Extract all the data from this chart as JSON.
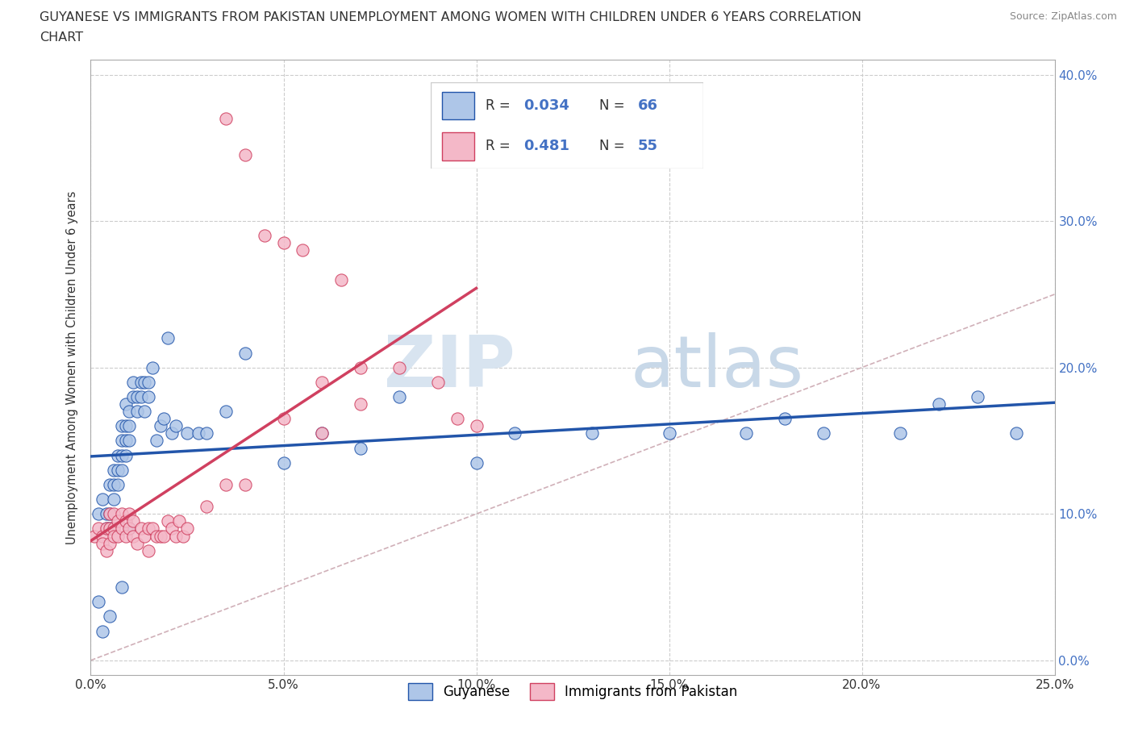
{
  "title_line1": "GUYANESE VS IMMIGRANTS FROM PAKISTAN UNEMPLOYMENT AMONG WOMEN WITH CHILDREN UNDER 6 YEARS CORRELATION",
  "title_line2": "CHART",
  "source": "Source: ZipAtlas.com",
  "xlim": [
    0,
    0.25
  ],
  "ylim": [
    -0.02,
    0.42
  ],
  "watermark_zip": "ZIP",
  "watermark_atlas": "atlas",
  "legend_r1": "0.034",
  "legend_n1": "66",
  "legend_r2": "0.481",
  "legend_n2": "55",
  "ylabel": "Unemployment Among Women with Children Under 6 years",
  "series1_color": "#aec6e8",
  "series2_color": "#f4b8c8",
  "series1_label": "Guyanese",
  "series2_label": "Immigrants from Pakistan",
  "series1_line_color": "#2255aa",
  "series2_line_color": "#d04060",
  "diag_color": "#d0b0b8",
  "background_color": "#ffffff",
  "s1_x": [
    0.002,
    0.003,
    0.004,
    0.004,
    0.005,
    0.005,
    0.005,
    0.006,
    0.006,
    0.006,
    0.007,
    0.007,
    0.007,
    0.008,
    0.008,
    0.008,
    0.008,
    0.009,
    0.009,
    0.009,
    0.009,
    0.01,
    0.01,
    0.01,
    0.011,
    0.011,
    0.012,
    0.012,
    0.013,
    0.013,
    0.014,
    0.014,
    0.015,
    0.015,
    0.016,
    0.017,
    0.018,
    0.019,
    0.02,
    0.021,
    0.022,
    0.025,
    0.028,
    0.03,
    0.035,
    0.04,
    0.05,
    0.06,
    0.07,
    0.08,
    0.1,
    0.11,
    0.13,
    0.15,
    0.17,
    0.18,
    0.19,
    0.21,
    0.22,
    0.23,
    0.24,
    0.002,
    0.003,
    0.005,
    0.008,
    0.01
  ],
  "s1_y": [
    0.1,
    0.11,
    0.1,
    0.09,
    0.12,
    0.1,
    0.09,
    0.13,
    0.12,
    0.11,
    0.14,
    0.13,
    0.12,
    0.16,
    0.15,
    0.14,
    0.13,
    0.175,
    0.16,
    0.15,
    0.14,
    0.17,
    0.16,
    0.15,
    0.19,
    0.18,
    0.18,
    0.17,
    0.19,
    0.18,
    0.19,
    0.17,
    0.19,
    0.18,
    0.2,
    0.15,
    0.16,
    0.165,
    0.22,
    0.155,
    0.16,
    0.155,
    0.155,
    0.155,
    0.17,
    0.21,
    0.135,
    0.155,
    0.145,
    0.18,
    0.135,
    0.155,
    0.155,
    0.155,
    0.155,
    0.165,
    0.155,
    0.155,
    0.175,
    0.18,
    0.155,
    0.04,
    0.02,
    0.03,
    0.05,
    0.09
  ],
  "s2_x": [
    0.001,
    0.002,
    0.003,
    0.003,
    0.004,
    0.004,
    0.005,
    0.005,
    0.005,
    0.006,
    0.006,
    0.006,
    0.007,
    0.007,
    0.008,
    0.008,
    0.009,
    0.009,
    0.01,
    0.01,
    0.011,
    0.011,
    0.012,
    0.013,
    0.014,
    0.015,
    0.015,
    0.016,
    0.017,
    0.018,
    0.019,
    0.02,
    0.021,
    0.022,
    0.023,
    0.024,
    0.025,
    0.03,
    0.035,
    0.04,
    0.05,
    0.06,
    0.07,
    0.08,
    0.09,
    0.095,
    0.1,
    0.06,
    0.07,
    0.065,
    0.055,
    0.05,
    0.045,
    0.04,
    0.035
  ],
  "s2_y": [
    0.085,
    0.09,
    0.085,
    0.08,
    0.09,
    0.075,
    0.1,
    0.09,
    0.08,
    0.1,
    0.09,
    0.085,
    0.095,
    0.085,
    0.1,
    0.09,
    0.095,
    0.085,
    0.1,
    0.09,
    0.095,
    0.085,
    0.08,
    0.09,
    0.085,
    0.09,
    0.075,
    0.09,
    0.085,
    0.085,
    0.085,
    0.095,
    0.09,
    0.085,
    0.095,
    0.085,
    0.09,
    0.105,
    0.12,
    0.12,
    0.165,
    0.19,
    0.2,
    0.2,
    0.19,
    0.165,
    0.16,
    0.155,
    0.175,
    0.26,
    0.28,
    0.285,
    0.29,
    0.345,
    0.37
  ]
}
